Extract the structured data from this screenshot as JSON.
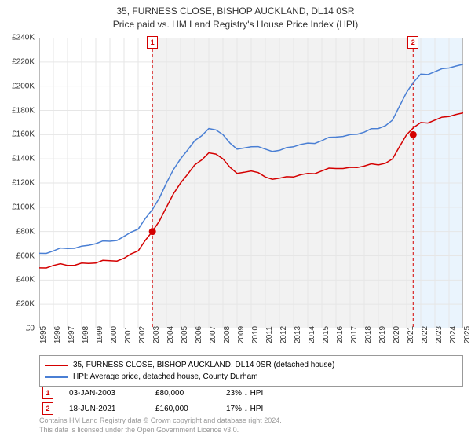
{
  "title": "35, FURNESS CLOSE, BISHOP AUCKLAND, DL14 0SR",
  "subtitle": "Price paid vs. HM Land Registry's House Price Index (HPI)",
  "chart": {
    "type": "line",
    "background_color": "#ffffff",
    "shaded_start_year_color": "#f2f2f2",
    "shaded_end_year_color": "#eaf4fd",
    "ylim": [
      0,
      240000
    ],
    "ytick_step": 20000,
    "ytick_prefix": "£",
    "ytick_suffix": "K",
    "yticks": [
      "£0",
      "£20K",
      "£40K",
      "£60K",
      "£80K",
      "£100K",
      "£120K",
      "£140K",
      "£160K",
      "£180K",
      "£200K",
      "£220K",
      "£240K"
    ],
    "xlim": [
      1995,
      2025
    ],
    "xtick_step": 1,
    "xticks": [
      "1995",
      "1996",
      "1997",
      "1998",
      "1999",
      "2000",
      "2001",
      "2002",
      "2003",
      "2004",
      "2005",
      "2006",
      "2007",
      "2008",
      "2009",
      "2010",
      "2011",
      "2012",
      "2013",
      "2014",
      "2015",
      "2016",
      "2017",
      "2018",
      "2019",
      "2020",
      "2021",
      "2022",
      "2023",
      "2024",
      "2025"
    ],
    "grid_color": "#e6e6e6",
    "axis_label_fontsize": 10,
    "axis_label_color": "#333333",
    "series": [
      {
        "name": "property",
        "label": "35, FURNESS CLOSE, BISHOP AUCKLAND, DL14 0SR (detached house)",
        "color": "#d40000",
        "line_width": 1.5,
        "data": [
          [
            1995,
            50000
          ],
          [
            1996,
            52000
          ],
          [
            1997,
            52000
          ],
          [
            1998,
            54000
          ],
          [
            1999,
            54000
          ],
          [
            2000,
            56000
          ],
          [
            2001,
            58000
          ],
          [
            2002,
            64000
          ],
          [
            2003,
            80000
          ],
          [
            2004,
            100000
          ],
          [
            2005,
            120000
          ],
          [
            2006,
            135000
          ],
          [
            2007,
            145000
          ],
          [
            2008,
            140000
          ],
          [
            2009,
            128000
          ],
          [
            2010,
            130000
          ],
          [
            2011,
            125000
          ],
          [
            2012,
            124000
          ],
          [
            2013,
            125000
          ],
          [
            2014,
            128000
          ],
          [
            2015,
            130000
          ],
          [
            2016,
            132000
          ],
          [
            2017,
            133000
          ],
          [
            2018,
            134000
          ],
          [
            2019,
            135000
          ],
          [
            2020,
            140000
          ],
          [
            2021,
            160000
          ],
          [
            2022,
            170000
          ],
          [
            2023,
            172000
          ],
          [
            2024,
            175000
          ],
          [
            2025,
            178000
          ]
        ]
      },
      {
        "name": "hpi",
        "label": "HPI: Average price, detached house, County Durham",
        "color": "#4a7fd4",
        "line_width": 1.5,
        "data": [
          [
            1995,
            62000
          ],
          [
            1996,
            64000
          ],
          [
            1997,
            66000
          ],
          [
            1998,
            68000
          ],
          [
            1999,
            70000
          ],
          [
            2000,
            72000
          ],
          [
            2001,
            76000
          ],
          [
            2002,
            82000
          ],
          [
            2003,
            98000
          ],
          [
            2004,
            120000
          ],
          [
            2005,
            140000
          ],
          [
            2006,
            155000
          ],
          [
            2007,
            165000
          ],
          [
            2008,
            160000
          ],
          [
            2009,
            148000
          ],
          [
            2010,
            150000
          ],
          [
            2011,
            148000
          ],
          [
            2012,
            147000
          ],
          [
            2013,
            150000
          ],
          [
            2014,
            153000
          ],
          [
            2015,
            155000
          ],
          [
            2016,
            158000
          ],
          [
            2017,
            160000
          ],
          [
            2018,
            162000
          ],
          [
            2019,
            165000
          ],
          [
            2020,
            172000
          ],
          [
            2021,
            195000
          ],
          [
            2022,
            210000
          ],
          [
            2023,
            212000
          ],
          [
            2024,
            215000
          ],
          [
            2025,
            218000
          ]
        ]
      }
    ],
    "event_markers": [
      {
        "id": "1",
        "year": 2003.01,
        "date": "03-JAN-2003",
        "price": "£80,000",
        "price_value": 80000,
        "delta": "23% ↓ HPI",
        "line_color": "#d40000",
        "dash": "4,3"
      },
      {
        "id": "2",
        "year": 2021.46,
        "date": "18-JUN-2021",
        "price": "£160,000",
        "price_value": 160000,
        "delta": "17% ↓ HPI",
        "line_color": "#d40000",
        "dash": "4,3"
      }
    ],
    "sale_dot": {
      "color": "#d40000",
      "radius": 4.5
    }
  },
  "legend": {
    "border_color": "#999999",
    "fontsize": 10
  },
  "marker_chip": {
    "border_color": "#d40000",
    "text_color": "#d40000",
    "bg": "#ffffff"
  },
  "footer": {
    "line1": "Contains HM Land Registry data © Crown copyright and database right 2024.",
    "line2": "This data is licensed under the Open Government Licence v3.0.",
    "color": "#999999"
  }
}
